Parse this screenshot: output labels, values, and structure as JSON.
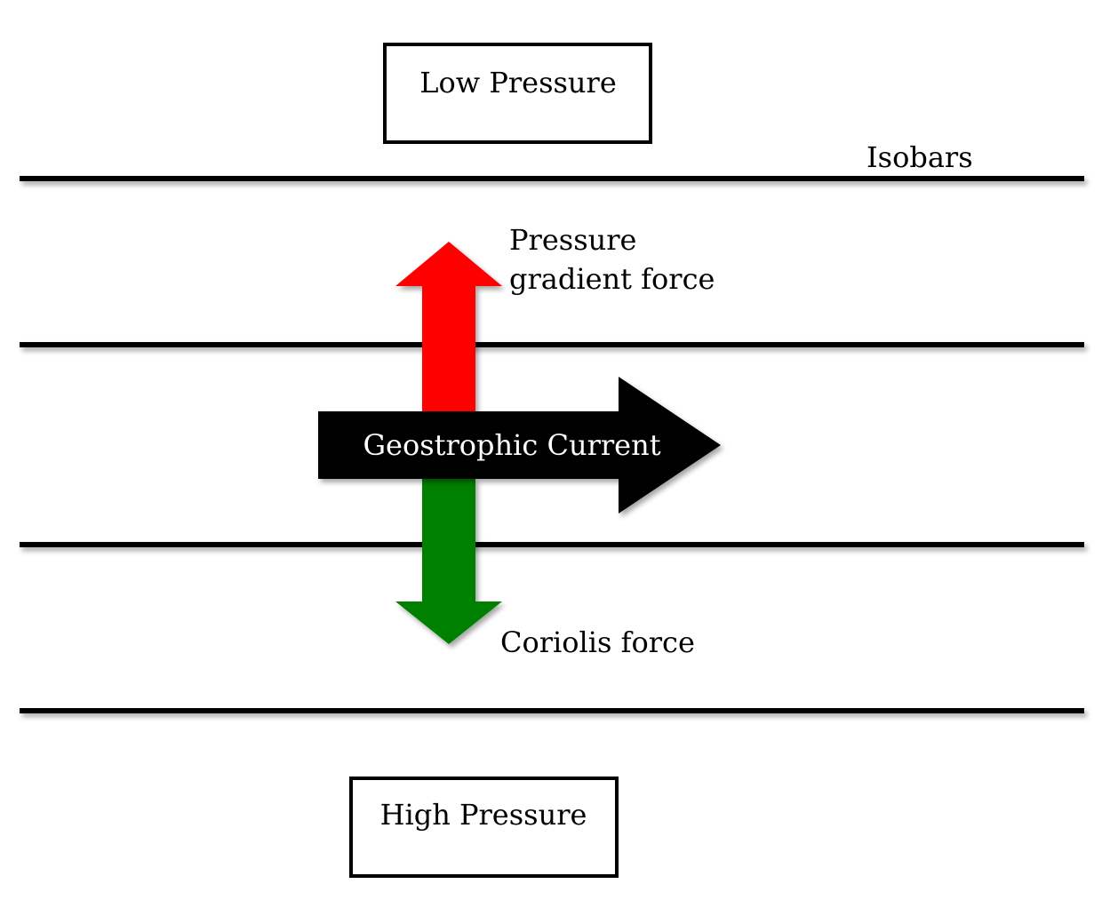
{
  "boxes": {
    "low_pressure": "Low Pressure",
    "high_pressure": "High Pressure"
  },
  "labels": {
    "isobars": "Isobars",
    "pressure_gradient_line1": "Pressure",
    "pressure_gradient_line2": "gradient force",
    "coriolis": "Coriolis force",
    "geostrophic_current": "Geostrophic Current"
  },
  "colors": {
    "pressure_gradient_arrow": "#ff0000",
    "coriolis_arrow": "#008000",
    "current_arrow": "#000000",
    "isobar": "#000000"
  }
}
